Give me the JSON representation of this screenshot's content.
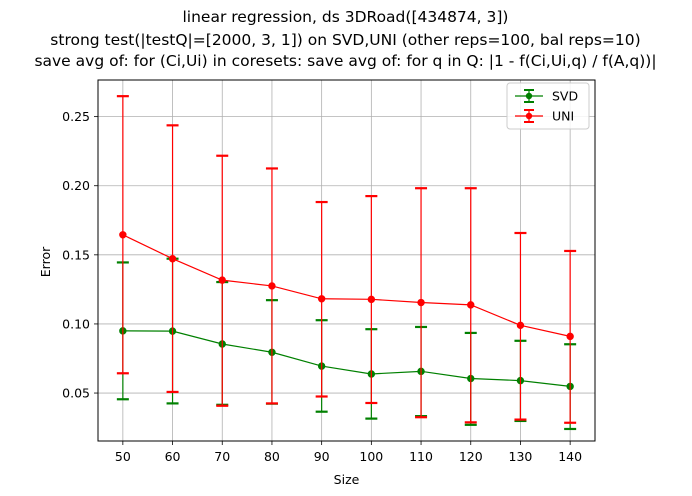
{
  "chart_data": {
    "type": "line",
    "title_lines": [
      "linear regression, ds 3DRoad([434874, 3])",
      "strong test(|testQ|=[2000, 3, 1]) on SVD,UNI (other reps=100, bal reps=10)",
      "save avg of: for (Ci,Ui) in coresets: save avg of: for q in Q: |1 - f(Ci,Ui,q) / f(A,q))|"
    ],
    "xlabel": "Size",
    "ylabel": "Error",
    "x": [
      50,
      60,
      70,
      80,
      90,
      100,
      110,
      120,
      130,
      140
    ],
    "x_tick_labels": [
      "50",
      "60",
      "70",
      "80",
      "90",
      "100",
      "110",
      "120",
      "130",
      "140"
    ],
    "y_ticks": [
      0.05,
      0.1,
      0.15,
      0.2,
      0.25
    ],
    "y_tick_labels": [
      "0.05",
      "0.10",
      "0.15",
      "0.20",
      "0.25"
    ],
    "xlim": [
      45,
      145
    ],
    "ylim": [
      0.0153,
      0.2765
    ],
    "grid": true,
    "legend_position": "upper-right",
    "series": [
      {
        "name": "SVD",
        "color": "#008000",
        "values": [
          0.095,
          0.0948,
          0.0855,
          0.0795,
          0.0695,
          0.0638,
          0.0657,
          0.0605,
          0.059,
          0.0548
        ],
        "err_low": [
          0.0455,
          0.0425,
          0.0415,
          0.0423,
          0.0365,
          0.0315,
          0.0333,
          0.027,
          0.0298,
          0.024
        ],
        "err_high": [
          0.1445,
          0.1472,
          0.1303,
          0.1172,
          0.1027,
          0.0962,
          0.0978,
          0.0935,
          0.0878,
          0.0853
        ]
      },
      {
        "name": "UNI",
        "color": "#ff0000",
        "values": [
          0.1645,
          0.1472,
          0.1317,
          0.1275,
          0.1182,
          0.1178,
          0.1155,
          0.1138,
          0.099,
          0.091
        ],
        "err_low": [
          0.0643,
          0.0508,
          0.0408,
          0.0425,
          0.0475,
          0.0428,
          0.0325,
          0.0288,
          0.0308,
          0.0285
        ],
        "err_high": [
          0.2648,
          0.2437,
          0.2217,
          0.2125,
          0.1882,
          0.1925,
          0.1982,
          0.1982,
          0.1658,
          0.1528
        ]
      }
    ]
  }
}
